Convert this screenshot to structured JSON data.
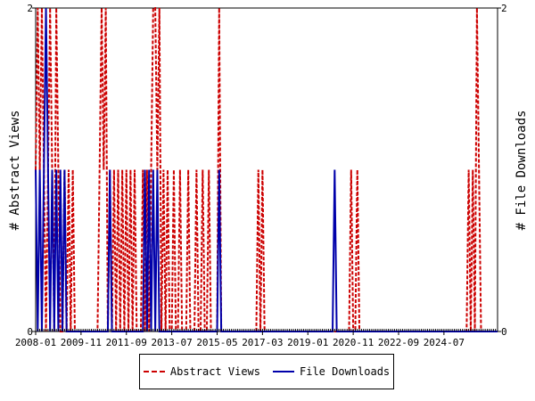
{
  "chart_data": {
    "type": "line",
    "title": "",
    "xlabel": "",
    "ylabel_left": "# Abstract Views",
    "ylabel_right": "# File Downloads",
    "x_ticks": [
      "2008-01",
      "2009-11",
      "2011-09",
      "2013-07",
      "2015-05",
      "2017-03",
      "2019-01",
      "2020-11",
      "2022-09",
      "2024-07"
    ],
    "x_range": [
      "2008-01",
      "2026-09"
    ],
    "y_left_range": [
      0,
      2
    ],
    "y_right_range": [
      0,
      2
    ],
    "y_left_ticks": [
      "0",
      "2"
    ],
    "y_right_ticks": [
      "0",
      "2"
    ],
    "grid": false,
    "legend_position": "bottom",
    "series": [
      {
        "name": "Abstract Views",
        "color": "#cc0000",
        "style": "dashed",
        "axis": "left",
        "points": [
          [
            "2008-01",
            1
          ],
          [
            "2008-02",
            2
          ],
          [
            "2008-03",
            1
          ],
          [
            "2008-04",
            2
          ],
          [
            "2008-05",
            1
          ],
          [
            "2008-06",
            0
          ],
          [
            "2008-07",
            1
          ],
          [
            "2008-08",
            2
          ],
          [
            "2008-09",
            1
          ],
          [
            "2008-10",
            0
          ],
          [
            "2008-11",
            2
          ],
          [
            "2008-12",
            1
          ],
          [
            "2009-01",
            0
          ],
          [
            "2009-02",
            0
          ],
          [
            "2009-03",
            1
          ],
          [
            "2009-04",
            0
          ],
          [
            "2009-05",
            1
          ],
          [
            "2009-06",
            0
          ],
          [
            "2009-07",
            1
          ],
          [
            "2009-08",
            0
          ],
          [
            "2010-08",
            1
          ],
          [
            "2010-09",
            2
          ],
          [
            "2010-10",
            1
          ],
          [
            "2010-11",
            2
          ],
          [
            "2010-12",
            0
          ],
          [
            "2011-01",
            1
          ],
          [
            "2011-02",
            0
          ],
          [
            "2011-03",
            1
          ],
          [
            "2011-04",
            0
          ],
          [
            "2011-05",
            1
          ],
          [
            "2011-06",
            0
          ],
          [
            "2011-07",
            1
          ],
          [
            "2011-08",
            0
          ],
          [
            "2011-09",
            1
          ],
          [
            "2011-10",
            0
          ],
          [
            "2011-11",
            1
          ],
          [
            "2011-12",
            0
          ],
          [
            "2012-01",
            1
          ],
          [
            "2012-02",
            0
          ],
          [
            "2012-05",
            1
          ],
          [
            "2012-06",
            0
          ],
          [
            "2012-07",
            1
          ],
          [
            "2012-08",
            0
          ],
          [
            "2012-09",
            1
          ],
          [
            "2012-10",
            2
          ],
          [
            "2012-11",
            2
          ],
          [
            "2012-12",
            1
          ],
          [
            "2013-01",
            2
          ],
          [
            "2013-02",
            0
          ],
          [
            "2013-03",
            1
          ],
          [
            "2013-04",
            0
          ],
          [
            "2013-05",
            1
          ],
          [
            "2013-06",
            0
          ],
          [
            "2013-08",
            1
          ],
          [
            "2013-09",
            0
          ],
          [
            "2013-11",
            1
          ],
          [
            "2013-12",
            0
          ],
          [
            "2014-03",
            1
          ],
          [
            "2014-04",
            0
          ],
          [
            "2014-07",
            1
          ],
          [
            "2014-08",
            0
          ],
          [
            "2014-10",
            1
          ],
          [
            "2014-11",
            0
          ],
          [
            "2015-01",
            1
          ],
          [
            "2015-02",
            0
          ],
          [
            "2015-06",
            2
          ],
          [
            "2015-07",
            0
          ],
          [
            "2017-01",
            1
          ],
          [
            "2017-02",
            0
          ],
          [
            "2017-03",
            1
          ],
          [
            "2017-04",
            0
          ],
          [
            "2020-10",
            1
          ],
          [
            "2020-11",
            0
          ],
          [
            "2021-01",
            1
          ],
          [
            "2021-02",
            0
          ],
          [
            "2025-07",
            1
          ],
          [
            "2025-08",
            0
          ],
          [
            "2025-09",
            1
          ],
          [
            "2025-10",
            0
          ],
          [
            "2025-11",
            2
          ],
          [
            "2025-12",
            1
          ]
        ]
      },
      {
        "name": "File Downloads",
        "color": "#0000aa",
        "style": "solid",
        "axis": "right",
        "points": [
          [
            "2008-01",
            1
          ],
          [
            "2008-02",
            0
          ],
          [
            "2008-03",
            1
          ],
          [
            "2008-04",
            0
          ],
          [
            "2008-05",
            1
          ],
          [
            "2008-06",
            2
          ],
          [
            "2008-07",
            1
          ],
          [
            "2008-08",
            0
          ],
          [
            "2008-09",
            1
          ],
          [
            "2008-10",
            0
          ],
          [
            "2008-11",
            1
          ],
          [
            "2008-12",
            0
          ],
          [
            "2009-01",
            1
          ],
          [
            "2009-02",
            0
          ],
          [
            "2009-03",
            1
          ],
          [
            "2009-04",
            0
          ],
          [
            "2011-01",
            1
          ],
          [
            "2011-02",
            0
          ],
          [
            "2012-06",
            1
          ],
          [
            "2012-07",
            0
          ],
          [
            "2012-08",
            1
          ],
          [
            "2012-09",
            0
          ],
          [
            "2012-10",
            1
          ],
          [
            "2012-11",
            0
          ],
          [
            "2012-12",
            1
          ],
          [
            "2013-01",
            0
          ],
          [
            "2015-06",
            1
          ],
          [
            "2015-07",
            0
          ],
          [
            "2020-02",
            1
          ],
          [
            "2020-03",
            0
          ]
        ]
      }
    ]
  }
}
